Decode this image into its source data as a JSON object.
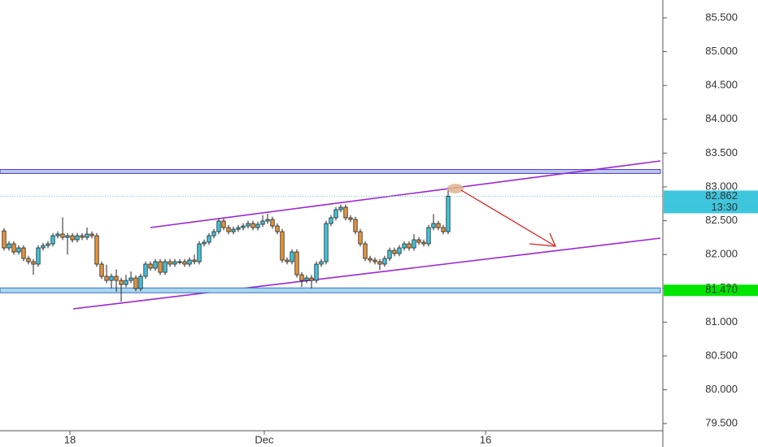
{
  "chart_data": {
    "type": "candlestick",
    "bull_color": "#3ec6dc",
    "bear_color": "#e8953a",
    "ylim": [
      79.394,
      85.764
    ],
    "yticks": [
      {
        "value": 79.5,
        "label": "79.500"
      },
      {
        "value": 80,
        "label": "80.000"
      },
      {
        "value": 80.5,
        "label": "80.500"
      },
      {
        "value": 81,
        "label": "81.000"
      },
      {
        "value": 81.5,
        "label": "81.500"
      },
      {
        "value": 82,
        "label": "82.000"
      },
      {
        "value": 82.5,
        "label": "82.500"
      },
      {
        "value": 83,
        "label": "83.000"
      },
      {
        "value": 83.5,
        "label": "83.500"
      },
      {
        "value": 84,
        "label": "84.000"
      },
      {
        "value": 84.5,
        "label": "84.500"
      },
      {
        "value": 85,
        "label": "85.000"
      },
      {
        "value": 85.5,
        "label": "85.500"
      }
    ],
    "xlim": [
      -0.833,
      134.5
    ],
    "xticks": [
      {
        "value": 13.5,
        "label": "18"
      },
      {
        "value": 53.33,
        "label": "Dec"
      },
      {
        "value": 98.67,
        "label": "16"
      }
    ],
    "last_price": {
      "value": 82.862,
      "label": "82.862",
      "countdown": "13:30"
    },
    "level": {
      "value": 81.47,
      "label": "81.470"
    },
    "ohlc": [
      [
        82.35,
        82.39,
        82.058,
        82.098
      ],
      [
        82.098,
        82.198,
        82.058,
        82.158
      ],
      [
        82.158,
        82.198,
        81.998,
        82.038
      ],
      [
        82.038,
        82.138,
        81.998,
        82.098
      ],
      [
        82.098,
        82.138,
        81.902,
        81.942
      ],
      [
        81.942,
        81.982,
        81.854,
        81.894
      ],
      [
        81.894,
        81.934,
        81.7,
        81.858
      ],
      [
        81.858,
        82.138,
        81.818,
        82.098
      ],
      [
        82.098,
        82.174,
        82.058,
        82.134
      ],
      [
        82.134,
        82.198,
        82.094,
        82.158
      ],
      [
        82.158,
        82.318,
        82.118,
        82.278
      ],
      [
        82.278,
        82.342,
        82.238,
        82.302
      ],
      [
        82.302,
        82.55,
        82.214,
        82.254
      ],
      [
        82.254,
        82.318,
        82.0,
        82.278
      ],
      [
        82.278,
        82.318,
        82.178,
        82.218
      ],
      [
        82.218,
        82.318,
        82.178,
        82.278
      ],
      [
        82.278,
        82.318,
        82.214,
        82.254
      ],
      [
        82.254,
        82.4,
        82.214,
        82.302
      ],
      [
        82.302,
        82.342,
        82.238,
        82.278
      ],
      [
        82.278,
        82.318,
        81.818,
        81.858
      ],
      [
        81.858,
        81.898,
        81.637,
        81.677
      ],
      [
        81.677,
        81.85,
        81.577,
        81.617
      ],
      [
        81.617,
        81.717,
        81.5,
        81.677
      ],
      [
        81.677,
        81.78,
        81.45,
        81.617
      ],
      [
        81.617,
        81.657,
        81.3,
        81.557
      ],
      [
        81.557,
        81.7,
        81.517,
        81.617
      ],
      [
        81.617,
        81.75,
        81.577,
        81.653
      ],
      [
        81.653,
        81.693,
        81.457,
        81.497
      ],
      [
        81.497,
        81.717,
        81.457,
        81.677
      ],
      [
        81.677,
        81.898,
        81.637,
        81.858
      ],
      [
        81.858,
        81.898,
        81.758,
        81.798
      ],
      [
        81.798,
        81.934,
        81.758,
        81.894
      ],
      [
        81.894,
        81.934,
        81.697,
        81.737
      ],
      [
        81.737,
        81.934,
        81.697,
        81.894
      ],
      [
        81.894,
        81.934,
        81.818,
        81.858
      ],
      [
        81.858,
        81.934,
        81.818,
        81.894
      ],
      [
        81.894,
        81.934,
        81.854,
        81.894
      ],
      [
        81.894,
        81.934,
        81.818,
        81.858
      ],
      [
        81.858,
        81.958,
        81.818,
        81.918
      ],
      [
        81.918,
        82.0,
        81.854,
        81.894
      ],
      [
        81.894,
        82.198,
        81.854,
        82.158
      ],
      [
        82.158,
        82.222,
        82.118,
        82.182
      ],
      [
        82.182,
        82.318,
        82.142,
        82.278
      ],
      [
        82.278,
        82.378,
        82.238,
        82.338
      ],
      [
        82.338,
        82.535,
        82.298,
        82.495
      ],
      [
        82.495,
        82.535,
        82.358,
        82.398
      ],
      [
        82.398,
        82.438,
        82.298,
        82.338
      ],
      [
        82.338,
        82.414,
        82.298,
        82.374
      ],
      [
        82.374,
        82.438,
        82.334,
        82.398
      ],
      [
        82.398,
        82.462,
        82.358,
        82.422
      ],
      [
        82.422,
        82.499,
        82.382,
        82.459
      ],
      [
        82.459,
        82.499,
        82.358,
        82.398
      ],
      [
        82.398,
        82.487,
        82.358,
        82.447
      ],
      [
        82.447,
        82.58,
        82.407,
        82.495
      ],
      [
        82.495,
        82.6,
        82.455,
        82.519
      ],
      [
        82.519,
        82.559,
        82.382,
        82.422
      ],
      [
        82.422,
        82.462,
        82.298,
        82.338
      ],
      [
        82.338,
        82.378,
        81.878,
        81.918
      ],
      [
        81.918,
        81.958,
        81.854,
        81.894
      ],
      [
        81.894,
        82.078,
        81.854,
        82.038
      ],
      [
        82.038,
        82.078,
        81.661,
        81.701
      ],
      [
        81.701,
        81.741,
        81.52,
        81.617
      ],
      [
        81.617,
        81.693,
        81.577,
        81.653
      ],
      [
        81.653,
        81.7,
        81.5,
        81.617
      ],
      [
        81.617,
        81.898,
        81.577,
        81.858
      ],
      [
        81.858,
        81.934,
        81.818,
        81.894
      ],
      [
        81.894,
        82.499,
        81.854,
        82.459
      ],
      [
        82.459,
        82.583,
        82.419,
        82.543
      ],
      [
        82.543,
        82.703,
        82.503,
        82.663
      ],
      [
        82.663,
        82.739,
        82.623,
        82.699
      ],
      [
        82.699,
        82.739,
        82.503,
        82.543
      ],
      [
        82.543,
        82.583,
        82.479,
        82.519
      ],
      [
        82.519,
        82.559,
        82.298,
        82.338
      ],
      [
        82.338,
        82.378,
        82.118,
        82.158
      ],
      [
        82.158,
        82.198,
        81.902,
        81.942
      ],
      [
        81.942,
        81.982,
        81.878,
        81.918
      ],
      [
        81.918,
        81.958,
        81.854,
        81.894
      ],
      [
        81.894,
        81.934,
        81.77,
        81.858
      ],
      [
        81.858,
        81.982,
        81.818,
        81.942
      ],
      [
        81.942,
        82.102,
        81.902,
        82.062
      ],
      [
        82.062,
        82.102,
        81.974,
        82.014
      ],
      [
        82.014,
        82.138,
        81.974,
        82.098
      ],
      [
        82.098,
        82.198,
        82.058,
        82.158
      ],
      [
        82.158,
        82.198,
        82.058,
        82.098
      ],
      [
        82.098,
        82.3,
        82.058,
        82.218
      ],
      [
        82.218,
        82.258,
        82.142,
        82.182
      ],
      [
        82.182,
        82.222,
        82.118,
        82.158
      ],
      [
        82.158,
        82.438,
        82.118,
        82.398
      ],
      [
        82.398,
        82.6,
        82.358,
        82.459
      ],
      [
        82.459,
        82.499,
        82.358,
        82.398
      ],
      [
        82.398,
        82.438,
        82.298,
        82.338
      ],
      [
        82.338,
        83.0,
        82.3,
        82.862
      ]
    ]
  }
}
